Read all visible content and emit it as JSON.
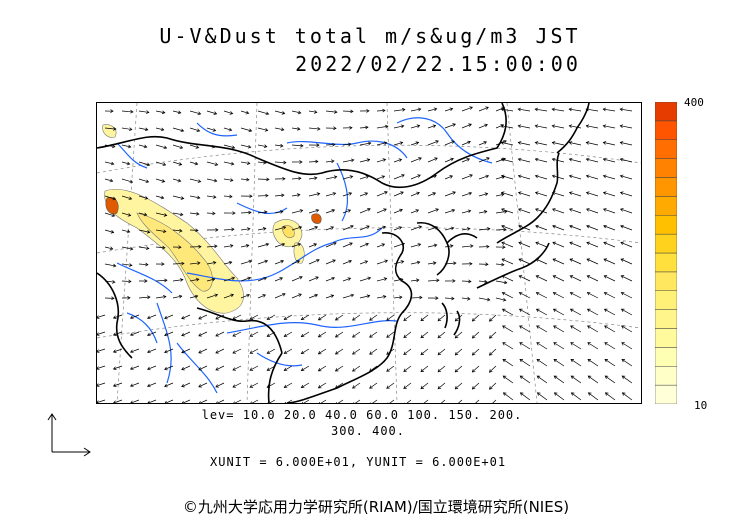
{
  "header": {
    "title": "U-V&Dust total m/s&ug/m3 JST",
    "datetime": "2022/02/22.15:00:00"
  },
  "colorbar": {
    "max_label": "400",
    "min_label": "10",
    "colors": [
      "#ffffd8",
      "#ffffc8",
      "#ffffb4",
      "#fffa9c",
      "#fff58a",
      "#fff078",
      "#ffe860",
      "#ffe03c",
      "#ffd21e",
      "#ffc000",
      "#ffaa00",
      "#ff9600",
      "#ff8200",
      "#ff6e00",
      "#ff5500",
      "#e63c00"
    ]
  },
  "levels": {
    "line1": "lev= 10.0 20.0 40.0 60.0 100. 150. 200.",
    "line2": "300. 400."
  },
  "units": {
    "text": "XUNIT = 6.000E+01, YUNIT = 6.000E+01"
  },
  "footer": {
    "copyright": "©九州大学応用力学研究所(RIAM)/国立環境研究所(NIES)"
  },
  "colors": {
    "coast": "#000000",
    "river": "#1e64ff",
    "grid": "#888888",
    "dust_light": "#fff5a0",
    "dust_mid": "#ffe060",
    "dust_high": "#e05a00"
  }
}
